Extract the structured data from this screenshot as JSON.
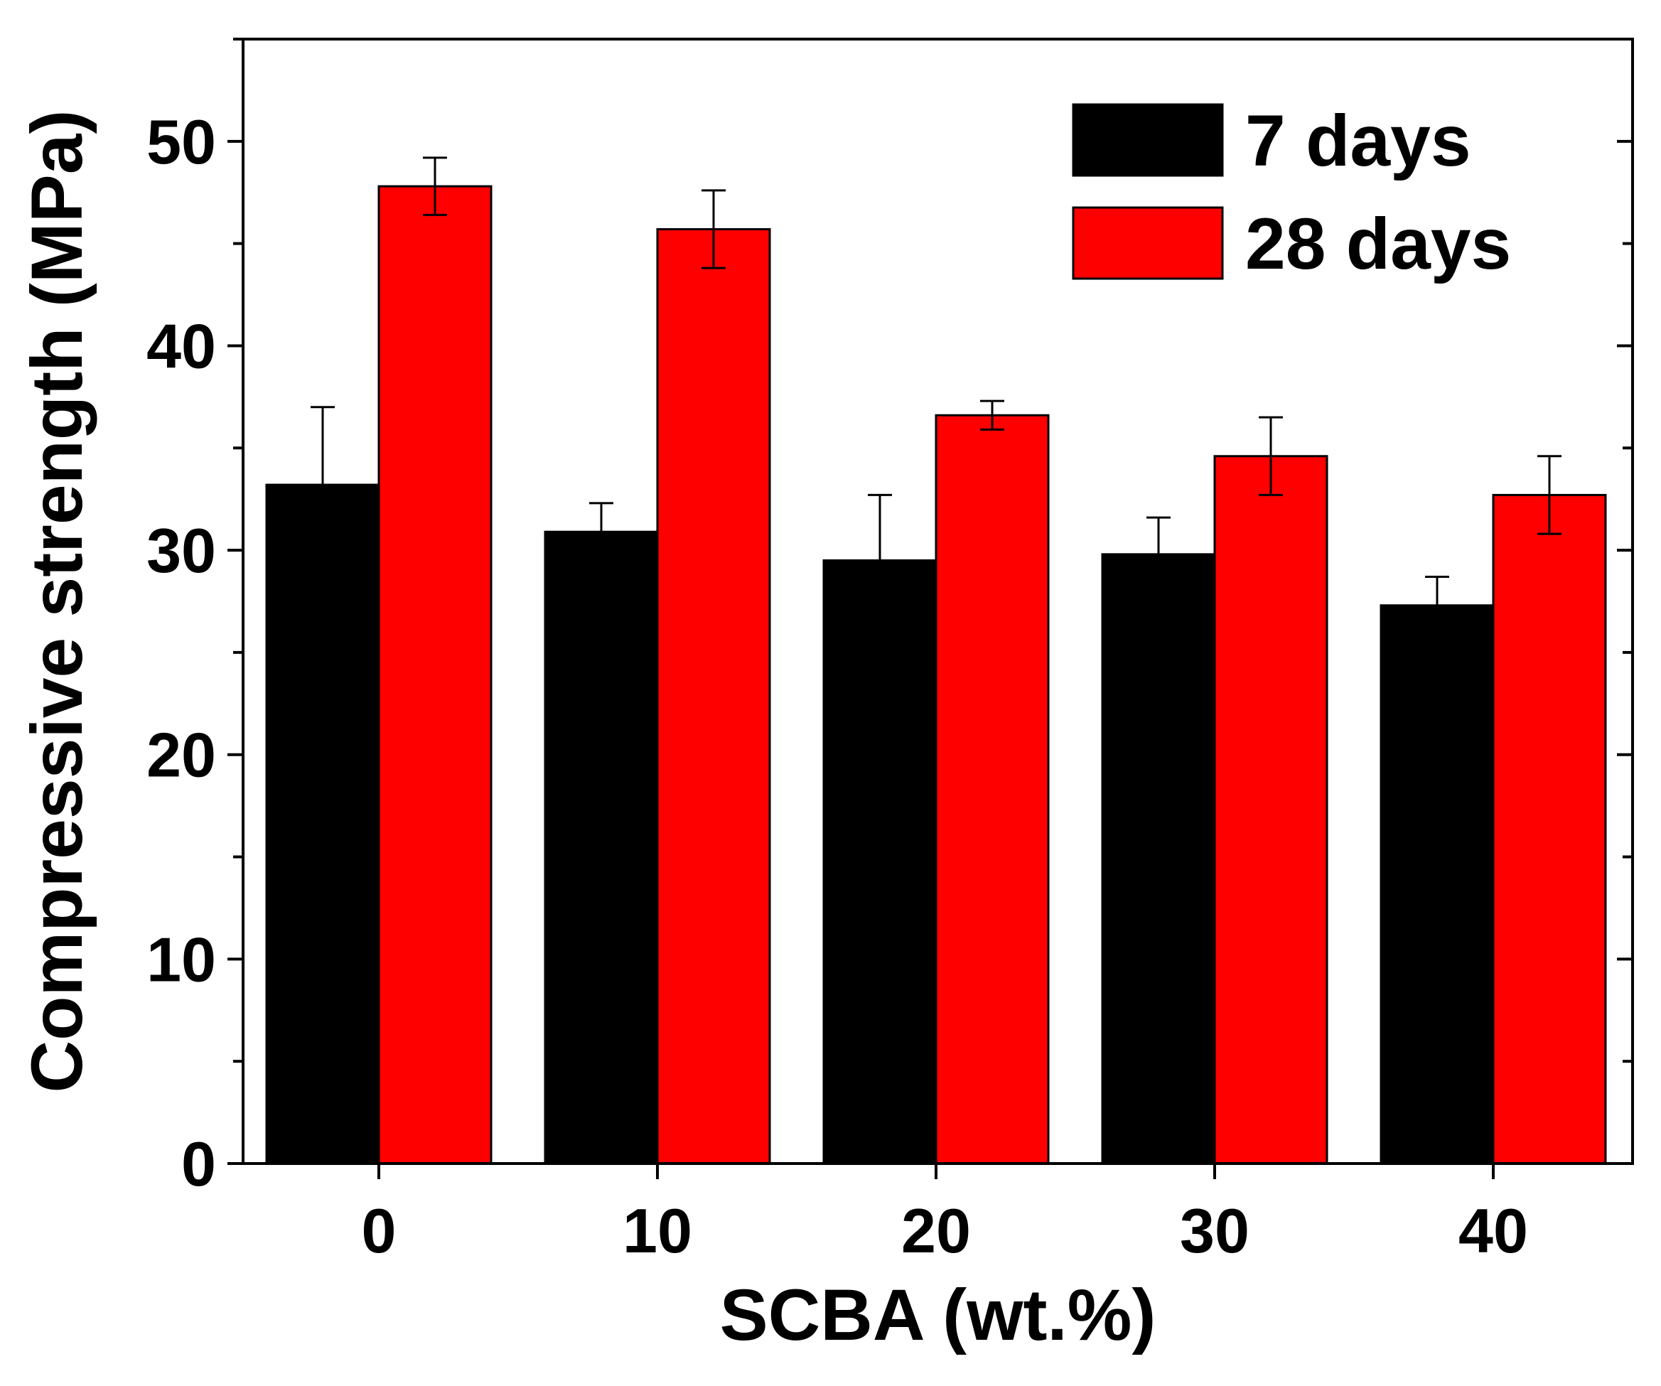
{
  "chart_data": {
    "type": "bar",
    "xlabel": "SCBA (wt.%)",
    "ylabel": "Compressive strength (MPa)",
    "categories": [
      "0",
      "10",
      "20",
      "30",
      "40"
    ],
    "ylim": [
      0,
      55
    ],
    "yticks": [
      0,
      10,
      20,
      30,
      40,
      50
    ],
    "y_minor_step": 5,
    "grid": false,
    "legend": "top-right",
    "series": [
      {
        "name": "7 days",
        "color": "#000000",
        "values": [
          33.2,
          30.9,
          29.5,
          29.8,
          27.3
        ],
        "errors": [
          3.8,
          1.4,
          3.2,
          1.8,
          1.4
        ]
      },
      {
        "name": "28 days",
        "color": "#ff0000",
        "values": [
          47.8,
          45.7,
          36.6,
          34.6,
          32.7
        ],
        "errors": [
          1.4,
          1.9,
          0.7,
          1.9,
          1.9
        ]
      }
    ]
  }
}
